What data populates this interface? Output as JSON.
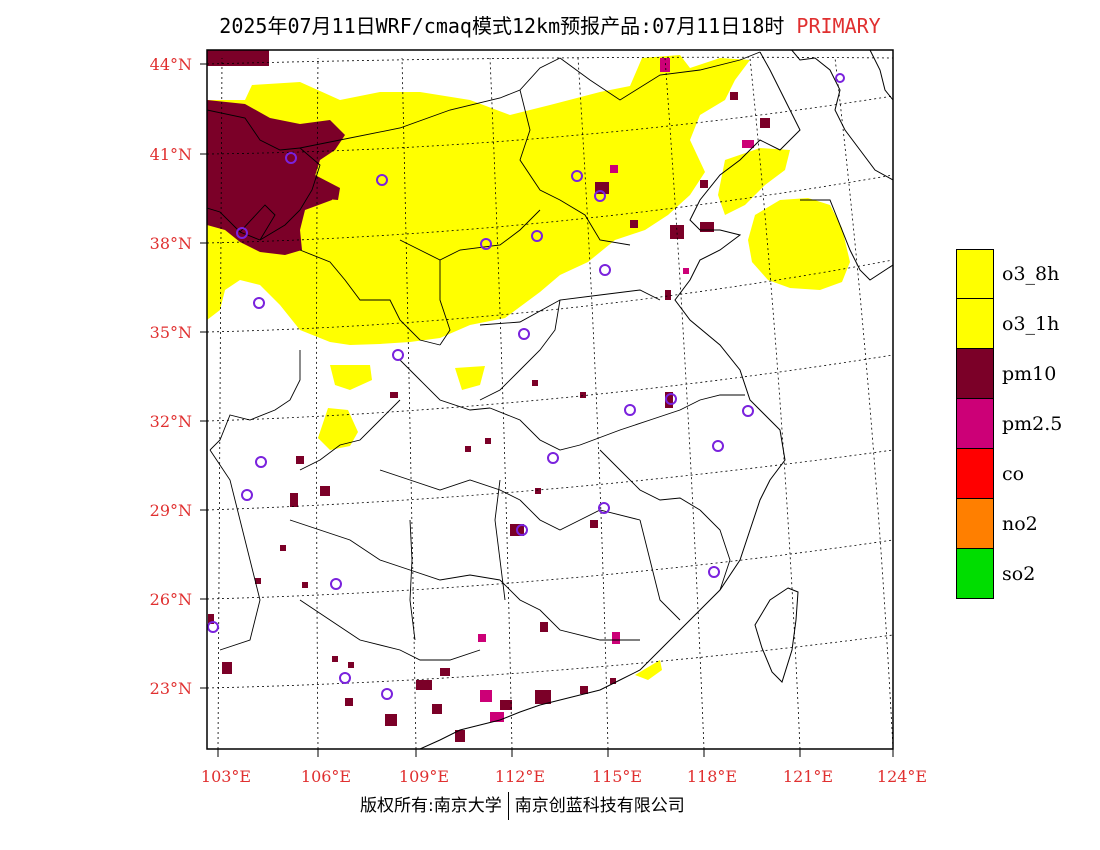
{
  "title": {
    "main": "2025年07月11日WRF/cmaq模式12km预报产品:07月11日18时",
    "tag": "PRIMARY",
    "tag_color": "#e03030"
  },
  "lat_labels": [
    "44°N",
    "41°N",
    "38°N",
    "35°N",
    "32°N",
    "29°N",
    "26°N",
    "23°N"
  ],
  "lon_labels": [
    "103°E",
    "106°E",
    "109°E",
    "112°E",
    "115°E",
    "118°E",
    "121°E",
    "124°E"
  ],
  "legend": {
    "items": [
      {
        "label": "o3_8h",
        "color": "#ffff00"
      },
      {
        "label": "o3_1h",
        "color": "#ffff00"
      },
      {
        "label": "pm10",
        "color": "#7b0028"
      },
      {
        "label": "pm2.5",
        "color": "#cc0077"
      },
      {
        "label": "co",
        "color": "#ff0000"
      },
      {
        "label": "no2",
        "color": "#ff7f00"
      },
      {
        "label": "so2",
        "color": "#00dd00"
      }
    ]
  },
  "footer": {
    "left": "版权所有:南京大学",
    "right": "南京创蓝科技有限公司"
  }
}
